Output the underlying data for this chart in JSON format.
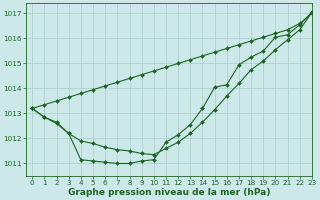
{
  "title": "Graphe pression niveau de la mer (hPa)",
  "bg_color": "#cce8e8",
  "grid_color": "#aacccc",
  "line_color": "#1a6620",
  "xlim": [
    -0.5,
    23
  ],
  "ylim": [
    1010.5,
    1017.4
  ],
  "xticks": [
    0,
    1,
    2,
    3,
    4,
    5,
    6,
    7,
    8,
    9,
    10,
    11,
    12,
    13,
    14,
    15,
    16,
    17,
    18,
    19,
    20,
    21,
    22,
    23
  ],
  "yticks": [
    1011,
    1012,
    1013,
    1014,
    1015,
    1016,
    1017
  ],
  "series_straight": [
    1013.2,
    1013.35,
    1013.5,
    1013.65,
    1013.8,
    1013.95,
    1014.1,
    1014.25,
    1014.4,
    1014.55,
    1014.7,
    1014.85,
    1015.0,
    1015.15,
    1015.3,
    1015.45,
    1015.6,
    1015.75,
    1015.9,
    1016.05,
    1016.2,
    1016.35,
    1016.6,
    1017.0
  ],
  "series_dip1": [
    1013.2,
    1012.85,
    1012.65,
    1012.2,
    1011.15,
    1011.1,
    1011.05,
    1011.0,
    1011.0,
    1011.1,
    1011.15,
    1011.85,
    1012.15,
    1012.55,
    1013.2,
    1014.05,
    1014.15,
    1014.95,
    1015.25,
    1015.5,
    1016.05,
    1016.15,
    1016.55,
    1017.05
  ],
  "series_dip2": [
    1013.2,
    1012.85,
    1012.6,
    1012.2,
    1011.9,
    1011.8,
    1011.65,
    1011.55,
    1011.5,
    1011.4,
    1011.35,
    1011.6,
    1011.85,
    1012.2,
    1012.65,
    1013.15,
    1013.7,
    1014.2,
    1014.75,
    1015.1,
    1015.55,
    1015.95,
    1016.35,
    1017.05
  ],
  "marker_size": 2.0,
  "linewidth": 0.8,
  "tick_fontsize": 5.2,
  "xlabel_fontsize": 6.5
}
